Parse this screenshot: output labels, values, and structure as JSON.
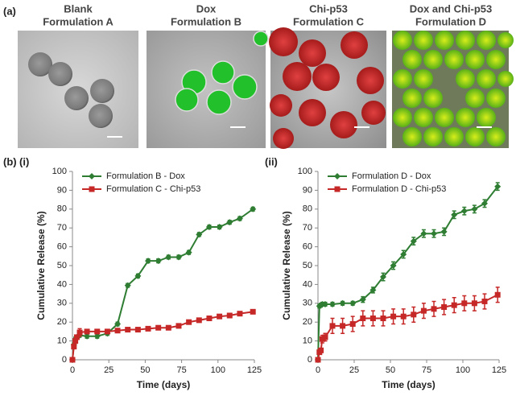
{
  "figure": {
    "label_a": "(a)",
    "label_b": "(b)",
    "images": [
      {
        "title": [
          "Blank",
          "Formulation A"
        ]
      },
      {
        "title": [
          "Dox",
          "Formulation B"
        ]
      },
      {
        "title": [
          "Chi-p53",
          "Formulation C"
        ]
      },
      {
        "title": [
          "Dox and Chi-p53",
          "Formulation D"
        ]
      }
    ]
  },
  "chart_data": [
    {
      "type": "line",
      "label": "(i)",
      "x_label": "Time (days)",
      "y_label": "Cumulative Release (%)",
      "x": [
        0,
        1,
        2,
        3,
        5,
        10,
        17,
        24,
        31,
        38,
        45,
        52,
        59,
        66,
        73,
        80,
        87,
        94,
        101,
        108,
        115,
        124
      ],
      "series": [
        {
          "name": "Formulation B - Dox",
          "color": "#2e7d32",
          "marker": "diamond",
          "values": [
            0,
            8,
            11,
            12,
            13,
            12.5,
            12.5,
            14,
            19,
            39.5,
            44.5,
            52.5,
            52.5,
            54.5,
            54.5,
            57,
            66.5,
            70.5,
            70.5,
            73,
            75,
            80
          ],
          "errors": [
            0,
            1,
            1,
            1,
            1,
            1,
            1,
            1,
            1,
            1,
            1,
            1,
            1,
            1,
            1,
            1,
            1,
            1,
            1,
            1,
            1,
            1
          ]
        },
        {
          "name": "Formulation C - Chi-p53",
          "color": "#c62828",
          "marker": "square",
          "values": [
            0,
            7,
            10,
            12,
            14.5,
            15,
            15,
            15,
            15.5,
            16,
            16,
            16.5,
            17,
            17,
            18,
            20,
            21,
            22,
            23,
            23.5,
            24.5,
            25.5
          ],
          "errors": [
            0,
            1,
            1,
            1,
            2,
            1,
            1,
            1,
            1,
            1,
            1,
            1,
            1,
            1,
            1,
            1,
            1,
            1,
            1,
            1,
            1,
            1
          ]
        }
      ],
      "xlim": [
        0,
        125
      ],
      "xticks": [
        0,
        25,
        50,
        75,
        100,
        125
      ],
      "ylim": [
        0,
        100
      ],
      "yticks": [
        0,
        10,
        20,
        30,
        40,
        50,
        60,
        70,
        80,
        90,
        100
      ],
      "legend": "upper-left"
    },
    {
      "type": "line",
      "label": "(ii)",
      "x_label": "Time (days)",
      "y_label": "Cumulative Release (%)",
      "x": [
        0,
        1,
        2,
        3,
        5,
        10,
        17,
        24,
        31,
        38,
        45,
        52,
        59,
        66,
        73,
        80,
        87,
        94,
        101,
        108,
        115,
        124
      ],
      "series": [
        {
          "name": "Formulation D - Dox",
          "color": "#2e7d32",
          "marker": "diamond",
          "values": [
            0,
            28.5,
            29,
            29.5,
            29.5,
            29.5,
            30,
            30,
            32,
            37,
            44,
            50,
            56,
            63,
            67,
            67,
            68,
            77,
            79,
            80,
            83,
            92
          ],
          "errors": [
            0,
            1,
            1,
            1,
            1,
            1,
            1,
            1,
            1.5,
            1.5,
            2,
            2,
            2,
            2,
            2,
            2,
            2,
            2,
            2,
            2,
            2,
            2
          ]
        },
        {
          "name": "Formulation D - Chi-p53",
          "color": "#c62828",
          "marker": "square",
          "values": [
            0,
            4,
            5,
            11,
            12,
            18,
            18,
            19,
            22,
            22,
            22,
            23,
            23,
            24,
            26,
            27,
            28,
            29,
            30,
            30,
            31,
            34.5
          ],
          "errors": [
            0,
            1,
            1,
            2,
            2,
            4,
            4,
            4,
            4,
            4,
            4,
            4,
            4,
            4,
            4,
            4,
            4,
            4,
            4,
            4,
            4,
            4
          ]
        }
      ],
      "xlim": [
        0,
        125
      ],
      "xticks": [
        0,
        25,
        50,
        75,
        100,
        125
      ],
      "ylim": [
        0,
        100
      ],
      "yticks": [
        0,
        10,
        20,
        30,
        40,
        50,
        60,
        70,
        80,
        90,
        100
      ],
      "legend": "upper-left"
    }
  ]
}
